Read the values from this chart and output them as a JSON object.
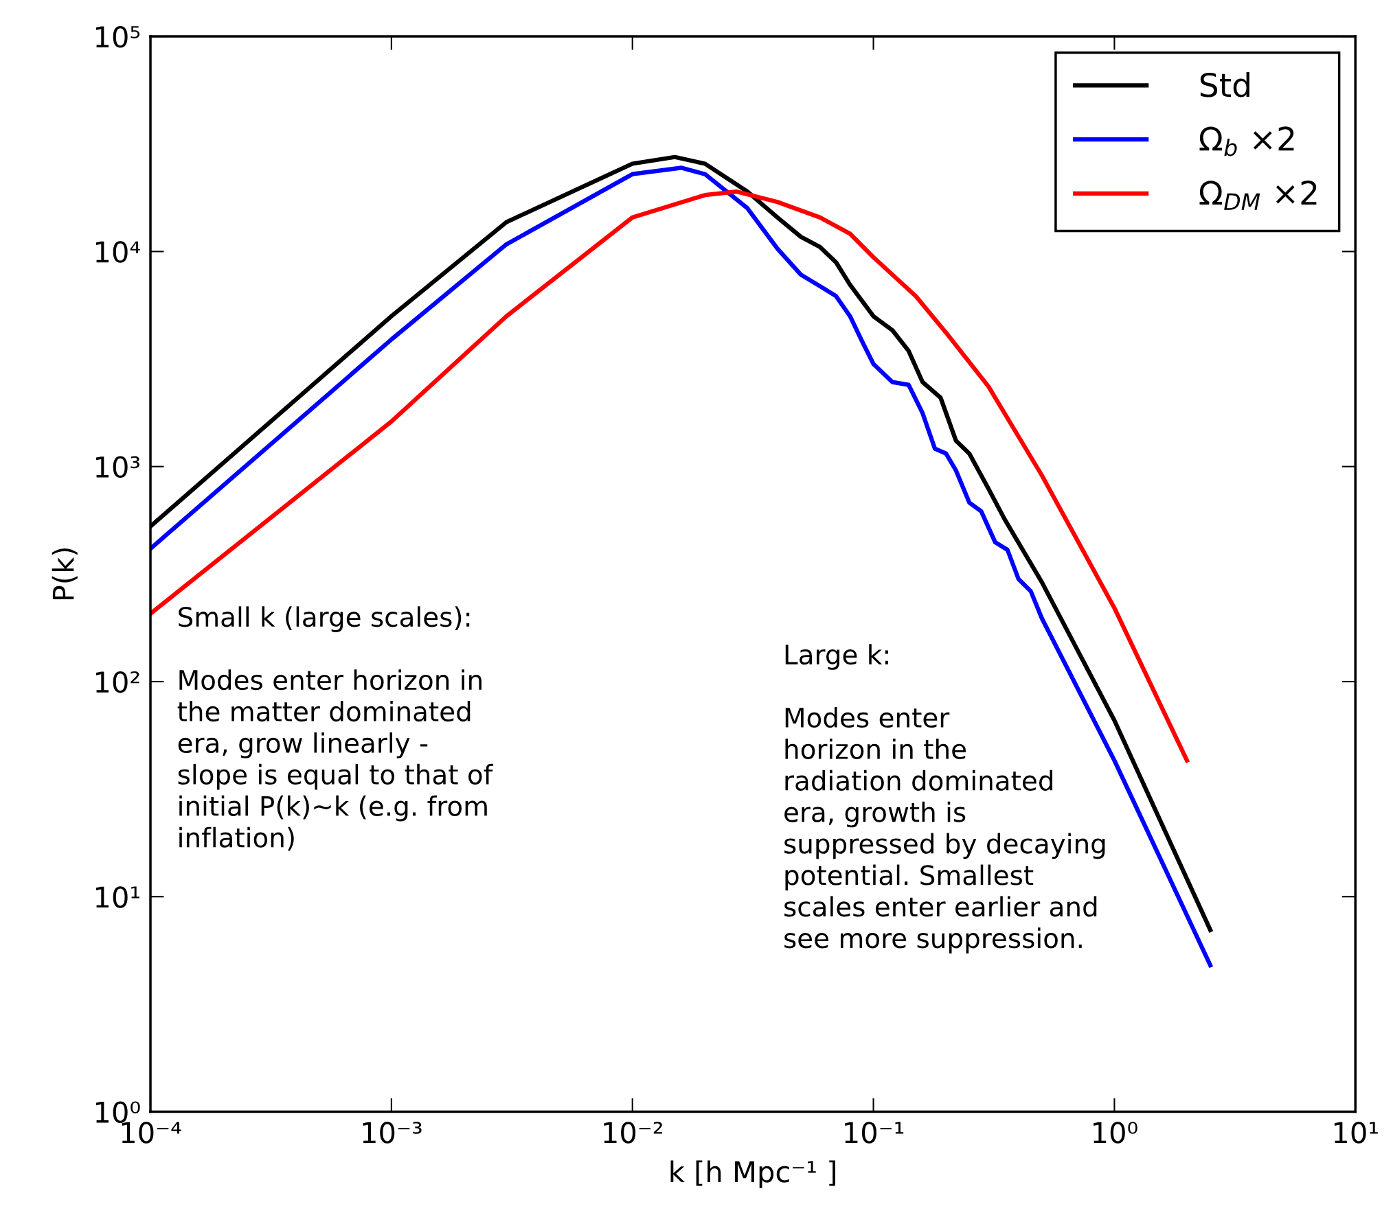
{
  "chart_data": {
    "type": "line",
    "xlabel": "k [h Mpc⁻¹ ]",
    "ylabel": "P(k)",
    "log": "xy",
    "grid": false,
    "legend": "top right",
    "marker": "none",
    "line_style": "solid",
    "xlim": [
      0.0001,
      10
    ],
    "ylim": [
      1,
      100000
    ],
    "xticks": [
      {
        "value": 0.0001,
        "label": "10⁻⁴"
      },
      {
        "value": 0.001,
        "label": "10⁻³"
      },
      {
        "value": 0.01,
        "label": "10⁻²"
      },
      {
        "value": 0.1,
        "label": "10⁻¹"
      },
      {
        "value": 1,
        "label": "10⁰"
      },
      {
        "value": 10,
        "label": "10¹"
      }
    ],
    "yticks": [
      {
        "value": 1,
        "label": "10⁰"
      },
      {
        "value": 10,
        "label": "10¹"
      },
      {
        "value": 100,
        "label": "10²"
      },
      {
        "value": 1000,
        "label": "10³"
      },
      {
        "value": 10000,
        "label": "10⁴"
      },
      {
        "value": 100000,
        "label": "10⁵"
      }
    ],
    "series": [
      {
        "name": "Std",
        "color": "#000000",
        "x": [
          0.0001,
          0.001,
          0.003,
          0.01,
          0.015,
          0.02,
          0.03,
          0.04,
          0.05,
          0.06,
          0.07,
          0.08,
          0.1,
          0.12,
          0.14,
          0.16,
          0.19,
          0.22,
          0.25,
          0.3,
          0.35,
          0.5,
          1,
          2.5
        ],
        "values": [
          527,
          5000,
          13700,
          25600,
          27500,
          25600,
          19000,
          14400,
          11700,
          10500,
          8900,
          7000,
          5000,
          4300,
          3450,
          2470,
          2090,
          1320,
          1150,
          790,
          570,
          290,
          66,
          7
        ]
      },
      {
        "name": "Ω$_{b}$ ×2",
        "color": "#0000ff",
        "x": [
          0.0001,
          0.001,
          0.003,
          0.01,
          0.016,
          0.02,
          0.03,
          0.04,
          0.05,
          0.06,
          0.07,
          0.08,
          0.09,
          0.1,
          0.12,
          0.14,
          0.16,
          0.18,
          0.2,
          0.22,
          0.25,
          0.28,
          0.32,
          0.36,
          0.4,
          0.45,
          0.5,
          1,
          2.5
        ],
        "values": [
          415,
          3900,
          10800,
          22900,
          24500,
          22900,
          15900,
          10300,
          7800,
          6900,
          6200,
          5000,
          3800,
          3000,
          2470,
          2400,
          1770,
          1210,
          1150,
          960,
          680,
          620,
          445,
          410,
          300,
          263,
          197,
          43,
          4.8
        ]
      },
      {
        "name": "Ω$_{DM}$ ×2",
        "color": "#ff0000",
        "x": [
          0.0001,
          0.001,
          0.003,
          0.01,
          0.02,
          0.027,
          0.04,
          0.06,
          0.08,
          0.1,
          0.15,
          0.2,
          0.3,
          0.5,
          1,
          2
        ],
        "values": [
          207,
          1620,
          5000,
          14400,
          18300,
          19000,
          17000,
          14400,
          12100,
          9400,
          6200,
          4200,
          2360,
          910,
          220,
          43
        ]
      }
    ],
    "annotations": [
      "Small k (large scales):\n\nModes enter horizon in\nthe matter dominated\nera, grow linearly -\nslope is equal to that of\ninitial P(k)~k (e.g. from\ninflation)",
      "Large k:\n\nModes enter\nhorizon in the\nradiation dominated\nera, growth is\nsuppressed by decaying\npotential. Smallest\nscales enter earlier and\nsee more suppression."
    ]
  }
}
